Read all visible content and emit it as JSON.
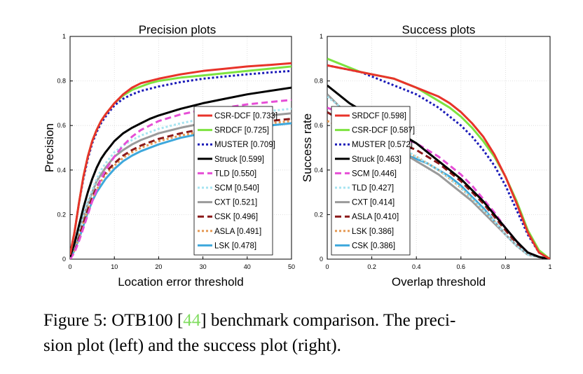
{
  "chart_data": [
    {
      "type": "line",
      "title": "Precision plots",
      "xlabel": "Location error threshold",
      "ylabel": "Precision",
      "xlim": [
        0,
        50
      ],
      "ylim": [
        0,
        1
      ],
      "xticks": [
        "0",
        "10",
        "20",
        "30",
        "40",
        "50"
      ],
      "yticks": [
        "0",
        "0.2",
        "0.4",
        "0.6",
        "0.8",
        "1"
      ],
      "grid": true,
      "legend_position": "bottom-right",
      "x": [
        0,
        1,
        2,
        3,
        4,
        5,
        6,
        7,
        8,
        10,
        12,
        14,
        16,
        18,
        20,
        25,
        30,
        35,
        40,
        45,
        50
      ],
      "series": [
        {
          "name": "CSR-DCF [0.733]",
          "color": "#e8332a",
          "dash": "solid",
          "values": [
            0.02,
            0.12,
            0.25,
            0.37,
            0.46,
            0.53,
            0.58,
            0.62,
            0.65,
            0.7,
            0.74,
            0.77,
            0.79,
            0.8,
            0.81,
            0.83,
            0.845,
            0.855,
            0.865,
            0.872,
            0.88
          ]
        },
        {
          "name": "SRDCF [0.725]",
          "color": "#7de33f",
          "dash": "solid",
          "values": [
            0.02,
            0.12,
            0.25,
            0.37,
            0.46,
            0.53,
            0.58,
            0.62,
            0.65,
            0.7,
            0.735,
            0.76,
            0.775,
            0.79,
            0.8,
            0.815,
            0.825,
            0.835,
            0.845,
            0.855,
            0.865
          ]
        },
        {
          "name": "MUSTER [0.709]",
          "color": "#1a1ab8",
          "dash": "dot",
          "values": [
            0.02,
            0.12,
            0.25,
            0.36,
            0.45,
            0.52,
            0.57,
            0.61,
            0.64,
            0.69,
            0.72,
            0.74,
            0.755,
            0.765,
            0.775,
            0.795,
            0.81,
            0.82,
            0.83,
            0.838,
            0.845
          ]
        },
        {
          "name": "Struck [0.599]",
          "color": "#000000",
          "dash": "solid",
          "values": [
            0.01,
            0.07,
            0.15,
            0.23,
            0.3,
            0.36,
            0.41,
            0.45,
            0.48,
            0.53,
            0.565,
            0.59,
            0.61,
            0.63,
            0.645,
            0.675,
            0.7,
            0.72,
            0.74,
            0.755,
            0.77
          ]
        },
        {
          "name": "TLD [0.550]",
          "color": "#e64ed6",
          "dash": "dash",
          "values": [
            0.0,
            0.03,
            0.08,
            0.14,
            0.2,
            0.26,
            0.31,
            0.36,
            0.4,
            0.46,
            0.51,
            0.55,
            0.58,
            0.6,
            0.62,
            0.65,
            0.67,
            0.68,
            0.695,
            0.705,
            0.715
          ]
        },
        {
          "name": "SCM [0.540]",
          "color": "#a6e4f0",
          "dash": "dot",
          "values": [
            0.01,
            0.06,
            0.13,
            0.2,
            0.26,
            0.31,
            0.36,
            0.4,
            0.43,
            0.48,
            0.51,
            0.535,
            0.555,
            0.57,
            0.585,
            0.61,
            0.63,
            0.645,
            0.655,
            0.665,
            0.675
          ]
        },
        {
          "name": "CXT [0.521]",
          "color": "#9a9a9a",
          "dash": "solid",
          "values": [
            0.01,
            0.06,
            0.13,
            0.19,
            0.25,
            0.3,
            0.35,
            0.38,
            0.41,
            0.46,
            0.49,
            0.515,
            0.535,
            0.55,
            0.565,
            0.59,
            0.61,
            0.625,
            0.635,
            0.645,
            0.655
          ]
        },
        {
          "name": "CSK [0.496]",
          "color": "#8b1a1a",
          "dash": "dash",
          "values": [
            0.0,
            0.05,
            0.11,
            0.17,
            0.23,
            0.28,
            0.32,
            0.36,
            0.39,
            0.43,
            0.465,
            0.49,
            0.51,
            0.525,
            0.54,
            0.565,
            0.585,
            0.6,
            0.61,
            0.62,
            0.63
          ]
        },
        {
          "name": "ASLA [0.491]",
          "color": "#e59a55",
          "dash": "dot",
          "values": [
            0.0,
            0.04,
            0.1,
            0.16,
            0.22,
            0.27,
            0.31,
            0.35,
            0.38,
            0.42,
            0.455,
            0.48,
            0.5,
            0.515,
            0.53,
            0.555,
            0.575,
            0.59,
            0.6,
            0.61,
            0.62
          ]
        },
        {
          "name": "LSK [0.478]",
          "color": "#3ea8dc",
          "dash": "solid",
          "values": [
            0.0,
            0.04,
            0.09,
            0.15,
            0.21,
            0.26,
            0.3,
            0.33,
            0.36,
            0.405,
            0.44,
            0.465,
            0.485,
            0.5,
            0.515,
            0.545,
            0.565,
            0.58,
            0.59,
            0.6,
            0.61
          ]
        }
      ]
    },
    {
      "type": "line",
      "title": "Success plots",
      "xlabel": "Overlap threshold",
      "ylabel": "Success rate",
      "xlim": [
        0,
        1
      ],
      "ylim": [
        0,
        1
      ],
      "xticks": [
        "0",
        "0.2",
        "0.4",
        "0.6",
        "0.8",
        "1"
      ],
      "yticks": [
        "0",
        "0.2",
        "0.4",
        "0.6",
        "0.8",
        "1"
      ],
      "grid": true,
      "legend_position": "bottom-left",
      "x": [
        0,
        0.05,
        0.1,
        0.15,
        0.2,
        0.25,
        0.3,
        0.35,
        0.4,
        0.45,
        0.5,
        0.55,
        0.6,
        0.65,
        0.7,
        0.75,
        0.8,
        0.85,
        0.9,
        0.95,
        1.0
      ],
      "series": [
        {
          "name": "SRDCF [0.598]",
          "color": "#e8332a",
          "dash": "solid",
          "values": [
            0.87,
            0.86,
            0.85,
            0.84,
            0.83,
            0.82,
            0.81,
            0.79,
            0.77,
            0.75,
            0.73,
            0.7,
            0.66,
            0.61,
            0.55,
            0.47,
            0.37,
            0.25,
            0.12,
            0.03,
            0.0
          ]
        },
        {
          "name": "CSR-DCF [0.587]",
          "color": "#7de33f",
          "dash": "solid",
          "values": [
            0.9,
            0.88,
            0.86,
            0.84,
            0.83,
            0.82,
            0.81,
            0.79,
            0.77,
            0.74,
            0.71,
            0.68,
            0.64,
            0.59,
            0.53,
            0.46,
            0.37,
            0.26,
            0.13,
            0.04,
            0.0
          ]
        },
        {
          "name": "MUSTER [0.572]",
          "color": "#1a1ab8",
          "dash": "dot",
          "values": [
            0.87,
            0.86,
            0.85,
            0.84,
            0.82,
            0.8,
            0.78,
            0.76,
            0.74,
            0.71,
            0.68,
            0.64,
            0.6,
            0.55,
            0.49,
            0.42,
            0.33,
            0.22,
            0.11,
            0.03,
            0.0
          ]
        },
        {
          "name": "Struck [0.463]",
          "color": "#000000",
          "dash": "solid",
          "values": [
            0.78,
            0.74,
            0.7,
            0.67,
            0.64,
            0.61,
            0.58,
            0.55,
            0.52,
            0.48,
            0.44,
            0.4,
            0.36,
            0.31,
            0.26,
            0.2,
            0.14,
            0.08,
            0.03,
            0.01,
            0.0
          ]
        },
        {
          "name": "SCM [0.446]",
          "color": "#e64ed6",
          "dash": "dash",
          "values": [
            0.68,
            0.66,
            0.64,
            0.62,
            0.6,
            0.58,
            0.56,
            0.54,
            0.52,
            0.49,
            0.46,
            0.42,
            0.38,
            0.33,
            0.27,
            0.21,
            0.14,
            0.08,
            0.03,
            0.01,
            0.0
          ]
        },
        {
          "name": "TLD [0.427]",
          "color": "#a6e4f0",
          "dash": "dot",
          "values": [
            0.73,
            0.69,
            0.65,
            0.61,
            0.58,
            0.55,
            0.52,
            0.49,
            0.46,
            0.43,
            0.4,
            0.36,
            0.32,
            0.27,
            0.22,
            0.17,
            0.11,
            0.06,
            0.02,
            0.01,
            0.0
          ]
        },
        {
          "name": "CXT [0.414]",
          "color": "#9a9a9a",
          "dash": "solid",
          "values": [
            0.74,
            0.69,
            0.64,
            0.6,
            0.56,
            0.53,
            0.5,
            0.47,
            0.44,
            0.41,
            0.38,
            0.34,
            0.3,
            0.26,
            0.21,
            0.16,
            0.11,
            0.06,
            0.02,
            0.01,
            0.0
          ]
        },
        {
          "name": "ASLA [0.410]",
          "color": "#8b1a1a",
          "dash": "dash",
          "values": [
            0.66,
            0.63,
            0.61,
            0.59,
            0.57,
            0.55,
            0.53,
            0.51,
            0.49,
            0.46,
            0.43,
            0.39,
            0.35,
            0.3,
            0.25,
            0.19,
            0.13,
            0.07,
            0.03,
            0.01,
            0.0
          ]
        },
        {
          "name": "LSK [0.386]",
          "color": "#e59a55",
          "dash": "dot",
          "values": [
            0.62,
            0.6,
            0.58,
            0.56,
            0.54,
            0.52,
            0.5,
            0.48,
            0.46,
            0.43,
            0.4,
            0.36,
            0.32,
            0.27,
            0.22,
            0.17,
            0.11,
            0.06,
            0.02,
            0.01,
            0.0
          ]
        },
        {
          "name": "CSK [0.386]",
          "color": "#3ea8dc",
          "dash": "solid",
          "values": [
            0.66,
            0.63,
            0.6,
            0.57,
            0.54,
            0.51,
            0.49,
            0.47,
            0.45,
            0.43,
            0.4,
            0.37,
            0.33,
            0.28,
            0.23,
            0.17,
            0.11,
            0.06,
            0.02,
            0.01,
            0.0
          ]
        }
      ]
    }
  ],
  "caption": {
    "line1_prefix": "Figure 5: OTB100 [",
    "line1_ref": "44",
    "line1_suffix": "] benchmark comparison. The preci-",
    "line2": "sion plot (left) and the success plot (right)."
  }
}
